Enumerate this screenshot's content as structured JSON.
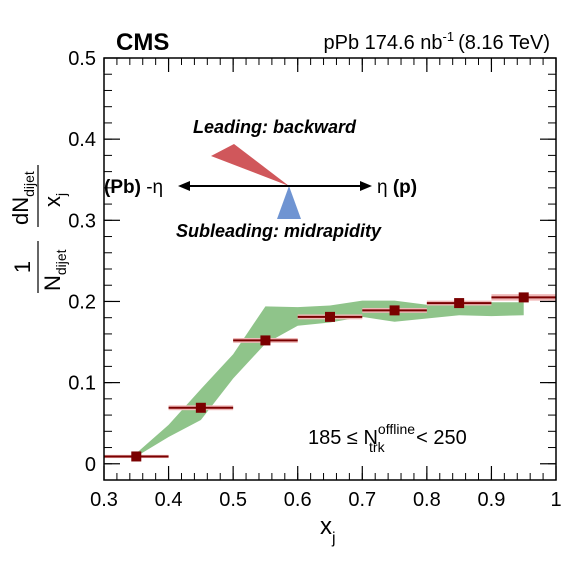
{
  "chart_data": {
    "type": "scatter",
    "experiment": "CMS",
    "lumi": {
      "main": "pPb 174.6 nb",
      "sup": "-1",
      "energy": "(8.16 TeV)"
    },
    "xlabel": {
      "main": "x",
      "sub": "j"
    },
    "ylabel": {
      "numerator": "1",
      "denominator_main": "N",
      "denominator_sub": "dijet",
      "deriv_num_main": "dN",
      "deriv_num_sub": "dijet",
      "deriv_den_main": "x",
      "deriv_den_sub": "j"
    },
    "xlim": [
      0.3,
      1.0
    ],
    "ylim": [
      -0.02,
      0.5
    ],
    "xticks": [
      "0.3",
      "0.4",
      "0.5",
      "0.6",
      "0.7",
      "0.8",
      "0.9",
      "1"
    ],
    "yticks": [
      "0",
      "0.1",
      "0.2",
      "0.3",
      "0.4",
      "0.5"
    ],
    "xtick_values": [
      0.3,
      0.4,
      0.5,
      0.6,
      0.7,
      0.8,
      0.9,
      1.0
    ],
    "ytick_values": [
      0,
      0.1,
      0.2,
      0.3,
      0.4,
      0.5
    ],
    "data": {
      "x": [
        0.35,
        0.45,
        0.55,
        0.65,
        0.75,
        0.85,
        0.95
      ],
      "y": [
        0.009,
        0.069,
        0.152,
        0.181,
        0.189,
        0.198,
        0.205
      ],
      "xerr": 0.05,
      "syst": [
        0.002,
        0.003,
        0.003,
        0.003,
        0.003,
        0.003,
        0.004
      ],
      "color": "#7a0000",
      "syst_color": "#f0b8b8"
    },
    "band": {
      "x": [
        0.35,
        0.4,
        0.45,
        0.5,
        0.55,
        0.6,
        0.65,
        0.7,
        0.75,
        0.8,
        0.85,
        0.9,
        0.95
      ],
      "lower": [
        0.009,
        0.033,
        0.054,
        0.105,
        0.148,
        0.17,
        0.174,
        0.181,
        0.175,
        0.179,
        0.183,
        0.182,
        0.183
      ],
      "upper": [
        0.013,
        0.048,
        0.092,
        0.135,
        0.194,
        0.193,
        0.195,
        0.201,
        0.201,
        0.196,
        0.201,
        0.199,
        0.199
      ],
      "color": "#8fc48a"
    },
    "annotation_selection": {
      "lhs": "185 ≤ N",
      "sup": "offline",
      "sub": "trk",
      "rhs": " < 250"
    },
    "diagram": {
      "leading_label": "Leading: backward",
      "leading_color": "#d0575b",
      "subleading_label": "Subleading: midrapidity",
      "subleading_color": "#6f94d2",
      "left_label_a": "(Pb)",
      "left_label_b": " -η",
      "right_label_a": "η ",
      "right_label_b": "(p)"
    }
  }
}
